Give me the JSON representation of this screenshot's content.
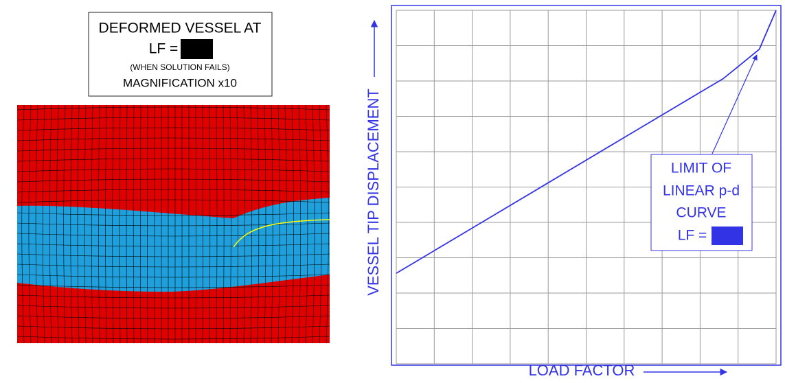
{
  "caption": [
    "DEFORMED VESSEL AT",
    "LF =",
    "(WHEN SOLUTION FAILS)",
    "MAGNIFICATION x10"
  ],
  "chart_data": {
    "type": "line",
    "xlabel": "LOAD FACTOR",
    "ylabel": "VESSEL TIP DISPLACEMENT",
    "annotation": [
      "LIMIT OF",
      "LINEAR p-d",
      "CURVE",
      "LF ="
    ],
    "x": [
      0,
      2,
      4,
      6,
      8,
      8.6,
      9.05,
      9.56,
      10
    ],
    "values": [
      2.56,
      3.84,
      5.12,
      6.4,
      7.68,
      8.06,
      8.45,
      8.9,
      10
    ],
    "color": "#3333e6",
    "xlim": [
      0,
      10
    ],
    "ylim": [
      0,
      10
    ],
    "xticks": [
      0,
      1,
      2,
      3,
      4,
      5,
      6,
      7,
      8,
      9,
      10
    ],
    "yticks": [
      0,
      1,
      2,
      3,
      4,
      5,
      6,
      7,
      8,
      9,
      10
    ],
    "grid": true
  }
}
